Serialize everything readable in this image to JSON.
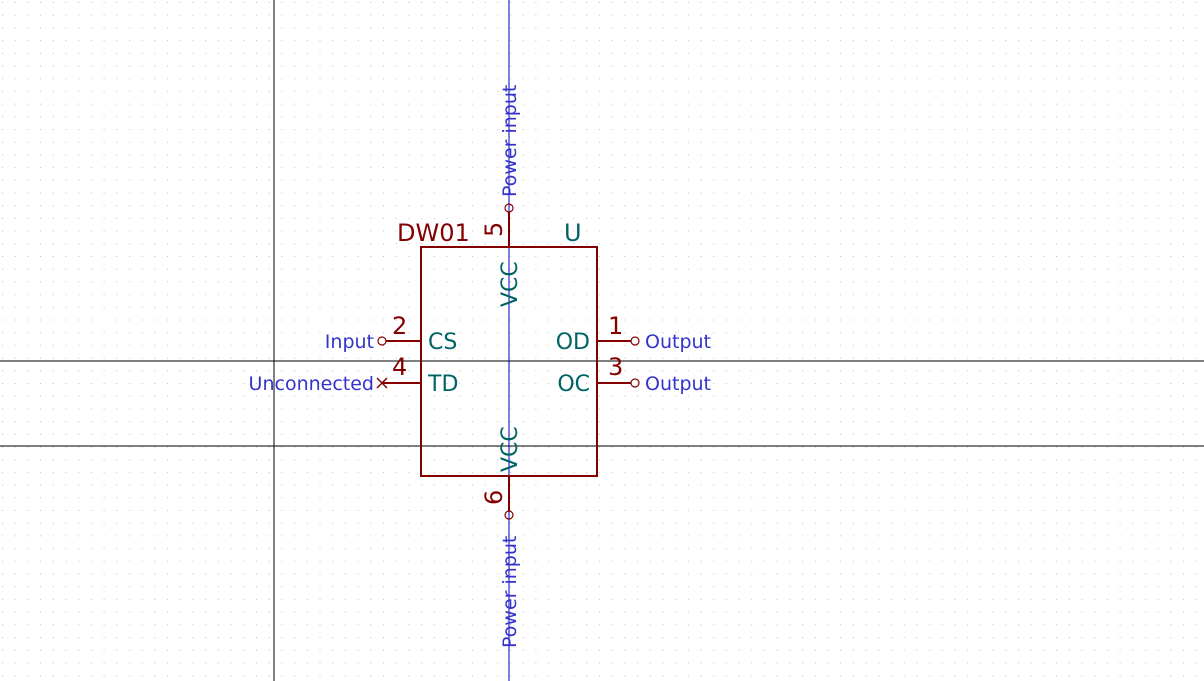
{
  "symbol": {
    "value": "DW01",
    "reference": "U",
    "pins": [
      {
        "number": "1",
        "name": "OD",
        "type": "Output"
      },
      {
        "number": "2",
        "name": "CS",
        "type": "Input"
      },
      {
        "number": "3",
        "name": "OC",
        "type": "Output"
      },
      {
        "number": "4",
        "name": "TD",
        "type": "Unconnected"
      },
      {
        "number": "5",
        "name": "VCC",
        "type": "Power input"
      },
      {
        "number": "6",
        "name": "VCC",
        "type": "Power input"
      }
    ]
  },
  "colors": {
    "background": "#ffffff",
    "body": "#840000",
    "pin_name": "#006464",
    "pin_type": "#3333cc",
    "axis_line": "#0000c0",
    "crosshair": "#000000",
    "grid_dot": "#bfbfbf"
  }
}
